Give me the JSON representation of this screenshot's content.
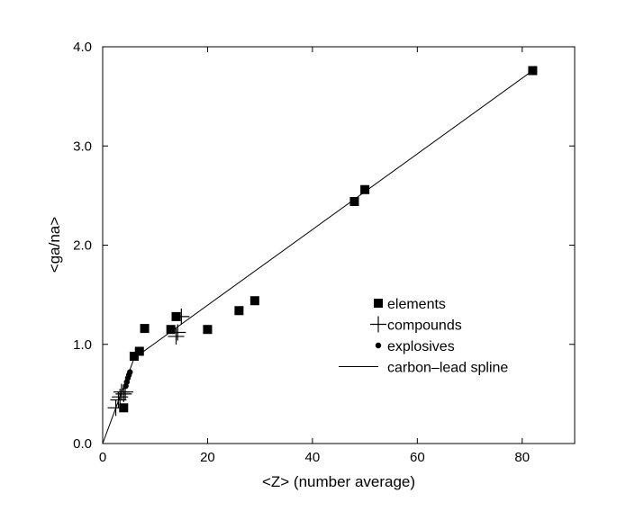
{
  "chart_data": {
    "type": "scatter",
    "title": "",
    "xlabel": "<Z> (number average)",
    "ylabel": "<ga/na>",
    "xlim": [
      0,
      90
    ],
    "ylim": [
      0.0,
      4.0
    ],
    "xticks": [
      0,
      20,
      40,
      60,
      80
    ],
    "yticks": [
      0.0,
      1.0,
      2.0,
      3.0,
      4.0
    ],
    "xtick_labels": [
      "0",
      "20",
      "40",
      "60",
      "80"
    ],
    "ytick_labels": [
      "0.0",
      "1.0",
      "2.0",
      "3.0",
      "4.0"
    ],
    "grid": false,
    "legend_position": "center-right",
    "series": [
      {
        "name": "elements",
        "marker": "square",
        "x": [
          4,
          6,
          7,
          8,
          13,
          14,
          20,
          26,
          29,
          48,
          50,
          82
        ],
        "y": [
          0.36,
          0.88,
          0.93,
          1.16,
          1.15,
          1.28,
          1.15,
          1.34,
          1.44,
          2.44,
          2.56,
          3.76
        ]
      },
      {
        "name": "compounds",
        "marker": "plus",
        "x": [
          2.5,
          3.0,
          3.3,
          3.6,
          4.0,
          4.3,
          14.0,
          14.3,
          15.0
        ],
        "y": [
          0.36,
          0.44,
          0.47,
          0.52,
          0.5,
          0.52,
          1.08,
          1.12,
          1.28
        ]
      },
      {
        "name": "explosives",
        "marker": "circle",
        "x": [
          4.4,
          4.6,
          4.8,
          5.0,
          5.2
        ],
        "y": [
          0.58,
          0.62,
          0.66,
          0.69,
          0.72
        ]
      },
      {
        "name": "carbon–lead spline",
        "marker": "line",
        "x": [
          0,
          6,
          82
        ],
        "y": [
          0.0,
          0.86,
          3.76
        ]
      }
    ]
  }
}
